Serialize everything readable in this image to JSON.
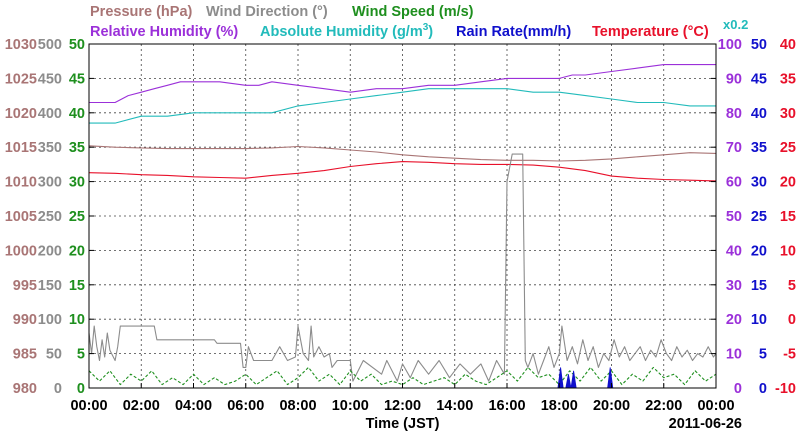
{
  "chart_data": {
    "type": "line",
    "header": {
      "row1": [
        {
          "text": "Pressure (hPa)",
          "color": "#A97575"
        },
        {
          "text": "Wind Direction (°)",
          "color": "#8C8C8C"
        },
        {
          "text": "Wind Speed (m/s)",
          "color": "#1E8F1E"
        }
      ],
      "row2": [
        {
          "text": "Relative Humidity (%)",
          "color": "#9B30D9"
        },
        {
          "text": "Absolute Humidity (g/m",
          "sup": "3",
          "tail": ")",
          "color": "#22BBBB"
        },
        {
          "text": "Rain Rate(mm/h)",
          "color": "#1010CC"
        },
        {
          "text": "Temperature (°C)",
          "color": "#E8102A"
        }
      ],
      "note": {
        "text": "x0.2",
        "color": "#22BBBB"
      }
    },
    "xlabel": "Time (JST)",
    "date": "2011-06-26",
    "xlim": [
      0,
      24
    ],
    "x_ticks": [
      "00:00",
      "02:00",
      "04:00",
      "06:00",
      "08:00",
      "10:00",
      "12:00",
      "14:00",
      "16:00",
      "18:00",
      "20:00",
      "22:00",
      "00:00"
    ],
    "grid": true,
    "axes": {
      "pressure": {
        "color": "#A97575",
        "ylim": [
          980,
          1030
        ],
        "ticks": [
          "1030",
          "1025",
          "1020",
          "1015",
          "1010",
          "1005",
          "1000",
          "995",
          "990",
          "985",
          "980"
        ]
      },
      "wind_direction": {
        "color": "#8C8C8C",
        "ylim": [
          0,
          500
        ],
        "ticks": [
          "500",
          "450",
          "400",
          "350",
          "300",
          "250",
          "200",
          "150",
          "100",
          "50",
          "0"
        ]
      },
      "wind_speed": {
        "color": "#1E8F1E",
        "ylim": [
          0,
          50
        ],
        "ticks": [
          "50",
          "45",
          "40",
          "35",
          "30",
          "25",
          "20",
          "15",
          "10",
          "5",
          "0"
        ]
      },
      "humidity": {
        "color": "#9B30D9",
        "ylim": [
          0,
          100
        ],
        "ticks": [
          "100",
          "90",
          "80",
          "70",
          "60",
          "50",
          "40",
          "30",
          "20",
          "10",
          "0"
        ]
      },
      "rain_rate": {
        "color": "#1010CC",
        "ylim": [
          0,
          50
        ],
        "ticks": [
          "50",
          "45",
          "40",
          "35",
          "30",
          "25",
          "20",
          "15",
          "10",
          "5",
          "0"
        ]
      },
      "temperature": {
        "color": "#E8102A",
        "ylim": [
          -10,
          40
        ],
        "ticks": [
          "40",
          "35",
          "30",
          "25",
          "20",
          "15",
          "10",
          "5",
          "0",
          "-5",
          "-10"
        ]
      }
    },
    "series": [
      {
        "name": "Relative Humidity (%)",
        "axis": "humidity",
        "color": "#9B30D9",
        "x": [
          0,
          1,
          1.5,
          2,
          2.5,
          3,
          3.5,
          4,
          5,
          6,
          6.5,
          7,
          8,
          9,
          10,
          11,
          12,
          13,
          14,
          15,
          16,
          17,
          18,
          18.5,
          19,
          20,
          21,
          22,
          23,
          24
        ],
        "y": [
          83,
          83,
          85,
          86,
          87,
          88,
          89,
          89,
          89,
          88,
          88,
          89,
          88,
          87,
          86,
          87,
          87,
          88,
          88,
          89,
          90,
          90,
          90,
          91,
          91,
          92,
          93,
          94,
          94,
          94
        ]
      },
      {
        "name": "Absolute Humidity (g/m3)",
        "axis": "humidity",
        "color": "#22BBBB",
        "x": [
          0,
          1,
          2,
          3,
          4,
          5,
          6,
          7,
          8,
          9,
          10,
          11,
          12,
          13,
          14,
          15,
          16,
          17,
          18,
          19,
          20,
          21,
          22,
          23,
          24
        ],
        "y": [
          77,
          77,
          79,
          79,
          80,
          80,
          80,
          80,
          82,
          83,
          84,
          85,
          86,
          87,
          87,
          87,
          87,
          86,
          86,
          85,
          84,
          83,
          83,
          82,
          82
        ]
      },
      {
        "name": "Pressure (hPa)",
        "axis": "pressure",
        "color": "#A97575",
        "x": [
          0,
          1,
          2,
          3,
          4,
          5,
          6,
          7,
          8,
          9,
          10,
          11,
          12,
          13,
          14,
          15,
          16,
          17,
          18,
          19,
          20,
          21,
          22,
          23,
          24
        ],
        "y": [
          1015.2,
          1015.0,
          1014.9,
          1014.8,
          1014.8,
          1014.8,
          1014.8,
          1014.9,
          1015.1,
          1014.9,
          1014.6,
          1014.3,
          1013.9,
          1013.6,
          1013.4,
          1013.2,
          1013.1,
          1013.1,
          1013.0,
          1013.1,
          1013.3,
          1013.6,
          1013.9,
          1014.2,
          1014.1
        ]
      },
      {
        "name": "Temperature (°C)",
        "axis": "temperature",
        "color": "#E8102A",
        "x": [
          0,
          1,
          2,
          3,
          4,
          5,
          6,
          7,
          8,
          9,
          10,
          11,
          12,
          13,
          14,
          15,
          16,
          17,
          18,
          19,
          20,
          21,
          22,
          23,
          24
        ],
        "y": [
          21.3,
          21.2,
          21.0,
          20.9,
          20.7,
          20.6,
          20.5,
          20.9,
          21.2,
          21.6,
          22.2,
          22.6,
          22.9,
          22.8,
          22.6,
          22.5,
          22.5,
          22.4,
          22.1,
          21.6,
          20.8,
          20.5,
          20.3,
          20.2,
          20.1
        ]
      },
      {
        "name": "Wind Direction (°)",
        "axis": "wind_direction",
        "color": "#8C8C8C",
        "x": [
          0,
          0.1,
          0.2,
          0.3,
          0.4,
          0.5,
          0.6,
          0.7,
          0.8,
          1.0,
          1.1,
          1.2,
          2.5,
          2.6,
          4.8,
          4.9,
          5.8,
          5.9,
          6.0,
          6.1,
          6.3,
          7.0,
          7.3,
          7.6,
          7.9,
          8.0,
          8.2,
          8.4,
          8.5,
          8.6,
          8.8,
          9.0,
          9.2,
          9.3,
          9.5,
          10.0,
          10.1,
          10.5,
          11.2,
          11.4,
          11.8,
          12.0,
          12.3,
          12.6,
          13.0,
          13.4,
          13.8,
          14.2,
          14.6,
          15.0,
          15.3,
          15.6,
          15.9,
          16.0,
          16.1,
          16.2,
          16.4,
          16.6,
          16.7,
          16.8,
          17.0,
          17.2,
          17.4,
          17.6,
          17.8,
          18.0,
          18.1,
          18.3,
          18.5,
          18.7,
          18.9,
          19.1,
          19.3,
          19.5,
          19.7,
          19.9,
          20.1,
          20.3,
          20.5,
          20.7,
          20.9,
          21.1,
          21.3,
          21.5,
          21.7,
          21.9,
          22.1,
          22.3,
          22.5,
          22.7,
          22.9,
          23.1,
          23.3,
          23.5,
          23.7,
          23.9,
          24
        ],
        "y": [
          80,
          50,
          90,
          60,
          40,
          70,
          45,
          80,
          55,
          40,
          60,
          90,
          90,
          70,
          70,
          65,
          65,
          30,
          30,
          60,
          40,
          40,
          60,
          40,
          45,
          90,
          50,
          40,
          90,
          45,
          60,
          45,
          50,
          30,
          40,
          40,
          10,
          40,
          20,
          40,
          10,
          35,
          15,
          40,
          20,
          40,
          15,
          35,
          20,
          35,
          10,
          40,
          20,
          300,
          320,
          340,
          340,
          340,
          40,
          30,
          50,
          20,
          40,
          60,
          30,
          50,
          90,
          40,
          60,
          35,
          70,
          40,
          60,
          30,
          50,
          40,
          70,
          45,
          60,
          40,
          50,
          60,
          40,
          55,
          45,
          70,
          50,
          40,
          60,
          45,
          55,
          40,
          50,
          45,
          60,
          45,
          50
        ]
      },
      {
        "name": "Wind Speed (m/s)",
        "axis": "wind_speed",
        "color": "#1E8F1E",
        "x": [
          0,
          0.4,
          0.8,
          1.2,
          1.6,
          2.0,
          2.4,
          2.8,
          3.2,
          3.6,
          4.0,
          4.4,
          4.8,
          5.2,
          5.6,
          6.0,
          6.4,
          6.8,
          7.2,
          7.6,
          8.0,
          8.4,
          8.8,
          9.2,
          9.6,
          10.0,
          10.4,
          10.8,
          11.2,
          11.6,
          12.0,
          12.4,
          12.8,
          13.2,
          13.6,
          14.0,
          14.4,
          14.8,
          15.2,
          15.6,
          16.0,
          16.4,
          16.8,
          17.2,
          17.6,
          18.0,
          18.4,
          18.8,
          19.2,
          19.6,
          20.0,
          20.4,
          20.8,
          21.2,
          21.6,
          22.0,
          22.4,
          22.8,
          23.2,
          23.6,
          24
        ],
        "y": [
          2.5,
          1,
          2.5,
          0.5,
          2,
          1,
          2.5,
          0.5,
          1.5,
          0.5,
          2,
          0.5,
          1.5,
          0.5,
          1,
          2,
          0.5,
          1.5,
          2.5,
          0.5,
          1.5,
          3,
          1,
          2,
          0.5,
          2.5,
          1,
          2,
          0.5,
          1,
          0.5,
          1.5,
          0.5,
          1,
          1.5,
          0.5,
          2,
          1,
          0.5,
          1.5,
          2.5,
          1,
          3,
          1.5,
          2,
          0.5,
          2.5,
          1,
          3,
          1,
          2.5,
          0.5,
          2,
          1,
          3,
          1.5,
          2,
          0.5,
          2.5,
          1,
          2
        ]
      },
      {
        "name": "Rain Rate(mm/h)",
        "axis": "rain_rate",
        "color": "#1010CC",
        "type": "area",
        "x": [
          17.95,
          18.05,
          18.15,
          18.25,
          18.35,
          18.45,
          18.55,
          18.65,
          19.85,
          19.95,
          20.05,
          20.15
        ],
        "y": [
          0,
          3,
          0,
          0,
          2,
          0,
          2.5,
          0,
          0,
          3,
          0,
          0
        ]
      }
    ]
  }
}
